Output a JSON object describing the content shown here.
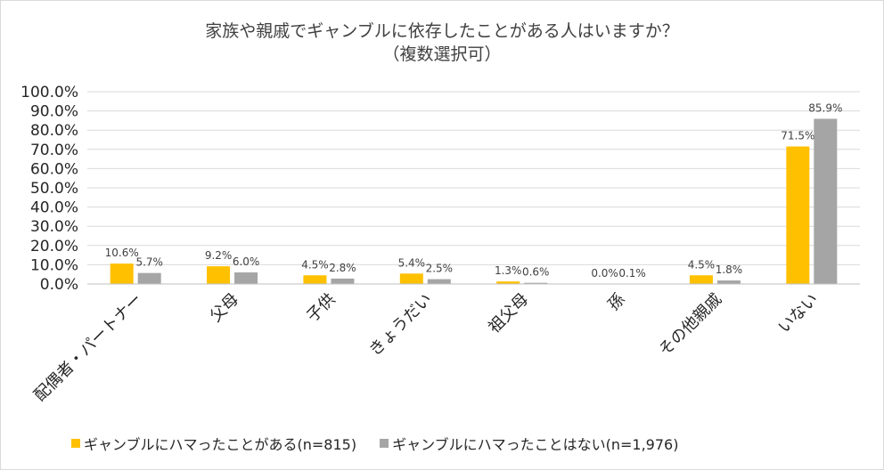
{
  "chart_data": {
    "type": "bar",
    "title_line1": "家族や親戚でギャンブルに依存したことがある人はいますか？",
    "title_line2": "（複数選択可）",
    "categories": [
      "配偶者・パートナー",
      "父母",
      "子供",
      "きょうだい",
      "祖父母",
      "孫",
      "その他親戚",
      "いない"
    ],
    "series": [
      {
        "name": "ギャンブルにハマったことがある(n=815)",
        "color": "#FFC000",
        "values": [
          10.6,
          9.2,
          4.5,
          5.4,
          1.3,
          0.0,
          4.5,
          71.5
        ],
        "labels": [
          "10.6%",
          "9.2%",
          "4.5%",
          "5.4%",
          "1.3%",
          "0.0%",
          "4.5%",
          "71.5%"
        ]
      },
      {
        "name": "ギャンブルにハマったことはない(n=1,976)",
        "color": "#A5A5A5",
        "values": [
          5.7,
          6.0,
          2.8,
          2.5,
          0.6,
          0.1,
          1.8,
          85.9
        ],
        "labels": [
          "5.7%",
          "6.0%",
          "2.8%",
          "2.5%",
          "0.6%",
          "0.1%",
          "1.8%",
          "85.9%"
        ]
      }
    ],
    "y_ticks": [
      "0.0%",
      "10.0%",
      "20.0%",
      "30.0%",
      "40.0%",
      "50.0%",
      "60.0%",
      "70.0%",
      "80.0%",
      "90.0%",
      "100.0%"
    ],
    "ylim": [
      0,
      100
    ],
    "grid": true,
    "legend_position": "bottom"
  }
}
